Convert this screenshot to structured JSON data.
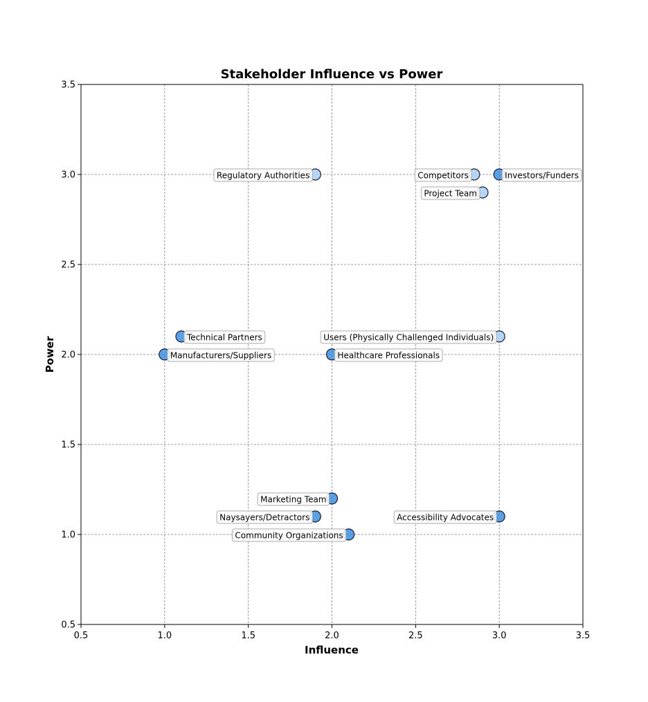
{
  "chart_data": {
    "type": "scatter",
    "title": "Stakeholder Influence vs Power",
    "xlabel": "Influence",
    "ylabel": "Power",
    "xlim": [
      0.5,
      3.5
    ],
    "ylim": [
      0.5,
      3.5
    ],
    "xticks": [
      "0.5",
      "1.0",
      "1.5",
      "2.0",
      "2.5",
      "3.0",
      "3.5"
    ],
    "yticks": [
      "0.5",
      "1.0",
      "1.5",
      "2.0",
      "2.5",
      "3.0",
      "3.5"
    ],
    "grid": true,
    "marker_colors": {
      "dark": "#3d8fe0",
      "light": "#a8cff5"
    },
    "points": [
      {
        "name": "Regulatory Authorities",
        "x": 1.9,
        "y": 3.0,
        "tone": "light",
        "label_side": "left"
      },
      {
        "name": "Competitors",
        "x": 2.85,
        "y": 3.0,
        "tone": "light",
        "label_side": "left"
      },
      {
        "name": "Investors/Funders",
        "x": 3.0,
        "y": 3.0,
        "tone": "dark",
        "label_side": "right"
      },
      {
        "name": "Project Team",
        "x": 2.9,
        "y": 2.9,
        "tone": "light",
        "label_side": "left"
      },
      {
        "name": "Technical Partners",
        "x": 1.1,
        "y": 2.1,
        "tone": "dark",
        "label_side": "right"
      },
      {
        "name": "Manufacturers/Suppliers",
        "x": 1.0,
        "y": 2.0,
        "tone": "dark",
        "label_side": "right"
      },
      {
        "name": "Users (Physically Challenged Individuals)",
        "x": 3.0,
        "y": 2.1,
        "tone": "light",
        "label_side": "left"
      },
      {
        "name": "Healthcare Professionals",
        "x": 2.0,
        "y": 2.0,
        "tone": "dark",
        "label_side": "right"
      },
      {
        "name": "Marketing Team",
        "x": 2.0,
        "y": 1.2,
        "tone": "dark",
        "label_side": "left"
      },
      {
        "name": "Naysayers/Detractors",
        "x": 1.9,
        "y": 1.1,
        "tone": "dark",
        "label_side": "left"
      },
      {
        "name": "Community Organizations",
        "x": 2.1,
        "y": 1.0,
        "tone": "dark",
        "label_side": "left"
      },
      {
        "name": "Accessibility Advocates",
        "x": 3.0,
        "y": 1.1,
        "tone": "dark",
        "label_side": "left"
      }
    ]
  }
}
